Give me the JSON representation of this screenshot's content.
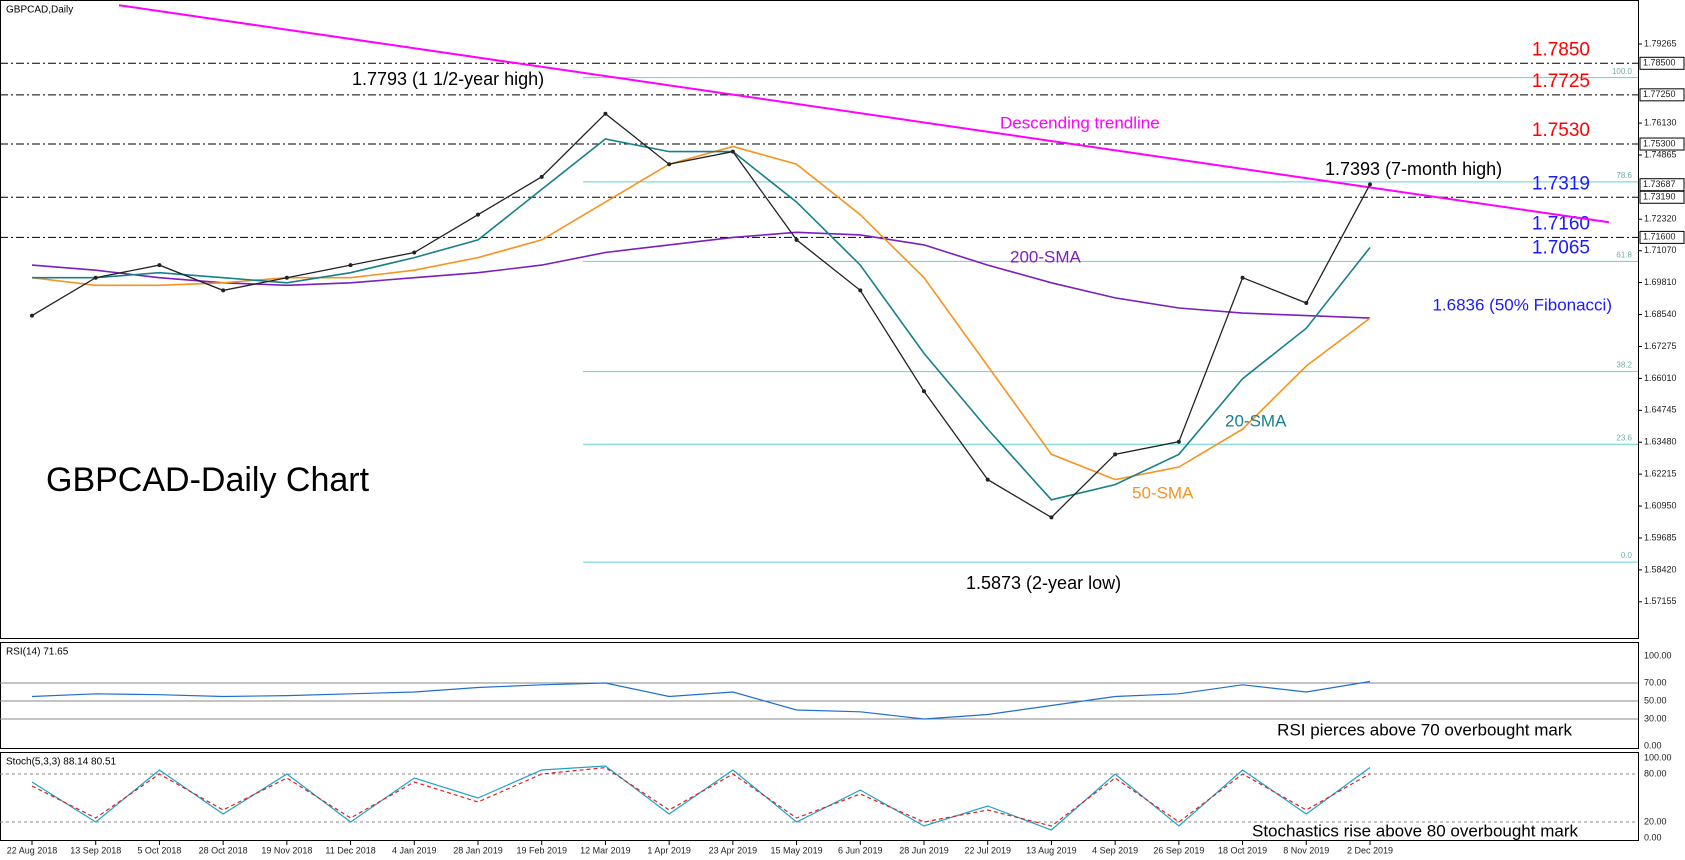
{
  "chart_data": [
    {
      "type": "line",
      "title": "GBPCAD,Daily",
      "heading": "GBPCAD-Daily Chart",
      "categories": [
        "22 Aug 2018",
        "13 Sep 2018",
        "5 Oct 2018",
        "28 Oct 2018",
        "19 Nov 2018",
        "11 Dec 2018",
        "4 Jan 2019",
        "28 Jan 2019",
        "19 Feb 2019",
        "12 Mar 2019",
        "1 Apr 2019",
        "23 Apr 2019",
        "15 May 2019",
        "6 Jun 2019",
        "28 Jun 2019",
        "22 Jul 2019",
        "13 Aug 2019",
        "4 Sep 2019",
        "26 Sep 2019",
        "18 Oct 2019",
        "8 Nov 2019",
        "2 Dec 2019"
      ],
      "price": {
        "color": "#222222",
        "values": [
          1.685,
          1.7,
          1.705,
          1.695,
          1.7,
          1.705,
          1.71,
          1.725,
          1.74,
          1.765,
          1.745,
          1.75,
          1.715,
          1.695,
          1.655,
          1.62,
          1.605,
          1.63,
          1.635,
          1.7,
          1.69,
          1.737
        ]
      },
      "series": [
        {
          "name": "200-SMA",
          "color": "#7b1fbf",
          "values": [
            1.705,
            1.703,
            1.7,
            1.698,
            1.697,
            1.698,
            1.7,
            1.702,
            1.705,
            1.71,
            1.713,
            1.716,
            1.718,
            1.717,
            1.713,
            1.705,
            1.698,
            1.692,
            1.688,
            1.686,
            1.685,
            1.684
          ]
        },
        {
          "name": "50-SMA",
          "color": "#f7931e",
          "values": [
            1.7,
            1.697,
            1.697,
            1.698,
            1.7,
            1.7,
            1.703,
            1.708,
            1.715,
            1.73,
            1.745,
            1.752,
            1.745,
            1.725,
            1.7,
            1.665,
            1.63,
            1.62,
            1.625,
            1.64,
            1.665,
            1.684
          ]
        },
        {
          "name": "20-SMA",
          "color": "#17808a",
          "values": [
            1.7,
            1.7,
            1.702,
            1.7,
            1.698,
            1.702,
            1.708,
            1.715,
            1.735,
            1.755,
            1.75,
            1.75,
            1.73,
            1.705,
            1.67,
            1.64,
            1.612,
            1.618,
            1.63,
            1.66,
            1.68,
            1.712
          ]
        }
      ],
      "ylim": [
        1.558,
        1.8085
      ],
      "yticks": [
        1.79265,
        {
          "value": 1.7613,
          "label": "1.76130"
        },
        1.74865,
        {
          "value": 1.7232,
          "label": "1.72320"
        },
        {
          "value": 1.7107,
          "label": "1.71070"
        },
        {
          "value": 1.6981,
          "label": "1.69810"
        },
        {
          "value": 1.6854,
          "label": "1.68540"
        },
        1.67275,
        {
          "value": 1.6601,
          "label": "1.66010"
        },
        1.64745,
        {
          "value": 1.6348,
          "label": "1.63480"
        },
        1.62215,
        {
          "value": 1.6095,
          "label": "1.60950"
        },
        1.59685,
        {
          "value": 1.5842,
          "label": "1.58420"
        },
        1.57155
      ],
      "last_price": 1.73687,
      "levels": [
        {
          "value": 1.785,
          "label": "1.7850",
          "axis_label": "1.78500",
          "color": "#ff0000"
        },
        {
          "value": 1.7725,
          "label": "1.7725",
          "axis_label": "1.77250",
          "color": "#ff0000"
        },
        {
          "value": 1.753,
          "label": "1.7530",
          "axis_label": "1.75300",
          "color": "#ff0000"
        },
        {
          "value": 1.7319,
          "label": "1.7319",
          "axis_label": "1.73190",
          "color": "#1a1aff"
        },
        {
          "value": 1.716,
          "label": "1.7160",
          "axis_label": "1.71600",
          "color": "#1a1aff"
        },
        {
          "value": 1.7065,
          "label": "1.7065",
          "color": "#1a1aff"
        },
        {
          "value": 1.6836,
          "label": "1.6836 (50% Fibonacci)",
          "color": "#1a1aff"
        }
      ],
      "fibonacci": [
        {
          "value": 1.7793,
          "label": "100.0"
        },
        {
          "value": 1.738,
          "label": "78.6"
        },
        {
          "value": 1.7065,
          "label": "61.8"
        },
        {
          "value": 1.6628,
          "label": "38.2"
        },
        {
          "value": 1.634,
          "label": "23.6"
        },
        {
          "value": 1.5873,
          "label": "0.0"
        }
      ],
      "trendline": {
        "name": "Descending trendline",
        "color": "#ff00ff",
        "values": [
          1.808,
          1.722
        ]
      },
      "annotations": [
        "1.7793 (1 1/2-year high)",
        "1.7393 (7-month high)",
        "1.5873 (2-year low)"
      ]
    },
    {
      "type": "line",
      "title": "RSI(14) 71.65",
      "note": "RSI pierces above 70 overbought mark",
      "series": [
        {
          "color": "#1f6fd1",
          "values": [
            55,
            58,
            57,
            55,
            56,
            58,
            60,
            65,
            68,
            70,
            55,
            60,
            40,
            38,
            30,
            35,
            45,
            55,
            58,
            68,
            60,
            71.65
          ]
        }
      ],
      "ylim": [
        0,
        100
      ],
      "yticks": [
        {
          "value": 100,
          "label": "100.00"
        },
        {
          "value": 70,
          "label": "70.00"
        },
        {
          "value": 50,
          "label": "50.00"
        },
        {
          "value": 30,
          "label": "30.00"
        },
        {
          "value": 0,
          "label": "0.00"
        }
      ]
    },
    {
      "type": "line",
      "title": "Stoch(5,3,3) 88.14 80.51",
      "note": "Stochastics rise above 80 overbought mark",
      "series": [
        {
          "color": "#1fa3c9",
          "values": [
            70,
            20,
            85,
            30,
            80,
            20,
            75,
            50,
            85,
            90,
            30,
            85,
            20,
            60,
            15,
            40,
            10,
            80,
            15,
            85,
            30,
            88.14
          ]
        },
        {
          "color": "#e02020",
          "values": [
            65,
            25,
            80,
            35,
            75,
            25,
            70,
            45,
            80,
            88,
            35,
            80,
            25,
            55,
            20,
            35,
            15,
            75,
            20,
            80,
            35,
            80.51
          ]
        }
      ],
      "ylim": [
        0,
        100
      ],
      "yticks": [
        {
          "value": 100,
          "label": "100.00"
        },
        {
          "value": 80,
          "label": "80.00"
        },
        {
          "value": 20,
          "label": "20.00"
        },
        {
          "value": 0,
          "label": "0.00"
        }
      ]
    }
  ]
}
